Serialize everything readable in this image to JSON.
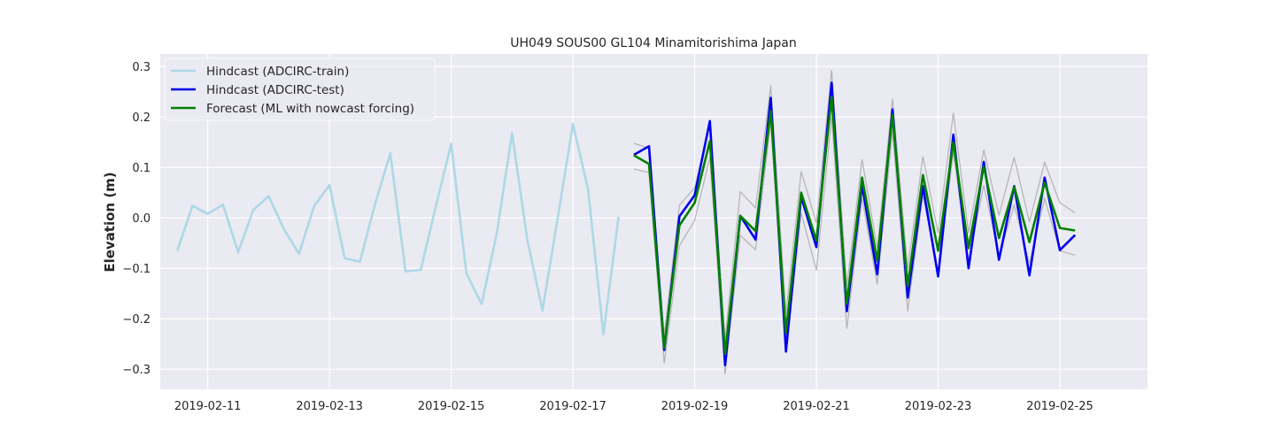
{
  "chart_data": {
    "type": "line",
    "title": "UH049 SOUS00 GL104 Minamitorishima Japan",
    "xlabel": "",
    "ylabel": "Elevation (m)",
    "xlim": [
      -0.78,
      15.44
    ],
    "ylim": [
      -0.34,
      0.325
    ],
    "x_ticks": [
      {
        "value": 0,
        "label": "2019-02-11"
      },
      {
        "value": 2,
        "label": "2019-02-13"
      },
      {
        "value": 4,
        "label": "2019-02-15"
      },
      {
        "value": 6,
        "label": "2019-02-17"
      },
      {
        "value": 8,
        "label": "2019-02-19"
      },
      {
        "value": 10,
        "label": "2019-02-21"
      },
      {
        "value": 12,
        "label": "2019-02-23"
      },
      {
        "value": 14,
        "label": "2019-02-25"
      }
    ],
    "y_ticks": [
      {
        "value": 0.3,
        "label": "0.3"
      },
      {
        "value": 0.2,
        "label": "0.2"
      },
      {
        "value": 0.1,
        "label": "0.1"
      },
      {
        "value": 0.0,
        "label": "0.0"
      },
      {
        "value": -0.1,
        "label": "−0.1"
      },
      {
        "value": -0.2,
        "label": "−0.2"
      },
      {
        "value": -0.3,
        "label": "−0.3"
      }
    ],
    "x_unit_note": "x values are days relative to 2019-02-11 00:00",
    "grid": true,
    "legend_position": "top-left",
    "background": "#eaeaf2",
    "series": [
      {
        "name": "Hindcast (ADCIRC-train)",
        "color": "#add8e6",
        "x": [
          -0.5,
          -0.25,
          0.0,
          0.25,
          0.5,
          0.75,
          1.0,
          1.25,
          1.5,
          1.75,
          2.0,
          2.25,
          2.5,
          2.75,
          3.0,
          3.25,
          3.5,
          3.75,
          4.0,
          4.25,
          4.5,
          4.75,
          5.0,
          5.25,
          5.5,
          5.75,
          6.0,
          6.25,
          6.5,
          6.75
        ],
        "values": [
          -0.065,
          0.024,
          0.008,
          0.026,
          -0.068,
          0.016,
          0.043,
          -0.022,
          -0.071,
          0.024,
          0.065,
          -0.08,
          -0.087,
          0.028,
          0.128,
          -0.106,
          -0.103,
          0.024,
          0.147,
          -0.11,
          -0.171,
          -0.03,
          0.168,
          -0.043,
          -0.184,
          0.0,
          0.186,
          0.056,
          -0.231,
          0.002
        ]
      },
      {
        "name": "Hindcast (ADCIRC-test)",
        "color": "#0000ee",
        "x": [
          7.0,
          7.25,
          7.5,
          7.75,
          8.0,
          8.25,
          8.5,
          8.75,
          9.0,
          9.25,
          9.5,
          9.75,
          10.0,
          10.25,
          10.5,
          10.75,
          11.0,
          11.25,
          11.5,
          11.75,
          12.0,
          12.25,
          12.5,
          12.75,
          13.0,
          13.25,
          13.5,
          13.75,
          14.0,
          14.25
        ],
        "values": [
          0.125,
          0.142,
          -0.262,
          0.003,
          0.045,
          0.192,
          -0.292,
          0.004,
          -0.043,
          0.238,
          -0.265,
          0.042,
          -0.058,
          0.268,
          -0.185,
          0.065,
          -0.112,
          0.215,
          -0.158,
          0.063,
          -0.116,
          0.165,
          -0.1,
          0.111,
          -0.083,
          0.063,
          -0.114,
          0.08,
          -0.064,
          -0.034
        ]
      },
      {
        "name": "Forecast (ML with nowcast forcing)",
        "color": "#008000",
        "x": [
          7.0,
          7.25,
          7.5,
          7.75,
          8.0,
          8.25,
          8.5,
          8.75,
          9.0,
          9.25,
          9.5,
          9.75,
          10.0,
          10.25,
          10.5,
          10.75,
          11.0,
          11.25,
          11.5,
          11.75,
          12.0,
          12.25,
          12.5,
          12.75,
          13.0,
          13.25,
          13.5,
          13.75,
          14.0,
          14.25
        ],
        "values": [
          0.124,
          0.107,
          -0.258,
          -0.015,
          0.03,
          0.152,
          -0.27,
          0.004,
          -0.026,
          0.212,
          -0.228,
          0.05,
          -0.045,
          0.24,
          -0.17,
          0.08,
          -0.085,
          0.204,
          -0.135,
          0.085,
          -0.065,
          0.15,
          -0.06,
          0.102,
          -0.04,
          0.062,
          -0.048,
          0.07,
          -0.02,
          -0.025
        ]
      }
    ],
    "uncertainty_band": {
      "color": "#b3b3b3",
      "x": [
        7.0,
        7.25,
        7.5,
        7.75,
        8.0,
        8.25,
        8.5,
        8.75,
        9.0,
        9.25,
        9.5,
        9.75,
        10.0,
        10.25,
        10.5,
        10.75,
        11.0,
        11.25,
        11.5,
        11.75,
        12.0,
        12.25,
        12.5,
        12.75,
        13.0,
        13.25,
        13.5,
        13.75,
        14.0,
        14.25
      ],
      "upper": [
        0.148,
        0.138,
        -0.232,
        0.025,
        0.06,
        0.185,
        -0.24,
        0.052,
        0.02,
        0.263,
        -0.19,
        0.092,
        -0.01,
        0.293,
        -0.135,
        0.116,
        -0.06,
        0.236,
        -0.1,
        0.122,
        -0.03,
        0.208,
        -0.03,
        0.135,
        0.005,
        0.12,
        -0.008,
        0.11,
        0.03,
        0.01
      ],
      "lower": [
        0.097,
        0.09,
        -0.288,
        -0.055,
        -0.005,
        0.12,
        -0.31,
        -0.035,
        -0.063,
        0.19,
        -0.268,
        0.01,
        -0.104,
        0.2,
        -0.22,
        0.04,
        -0.132,
        0.172,
        -0.185,
        0.045,
        -0.108,
        0.13,
        -0.085,
        0.065,
        -0.075,
        0.025,
        -0.09,
        0.038,
        -0.065,
        -0.074
      ]
    }
  }
}
